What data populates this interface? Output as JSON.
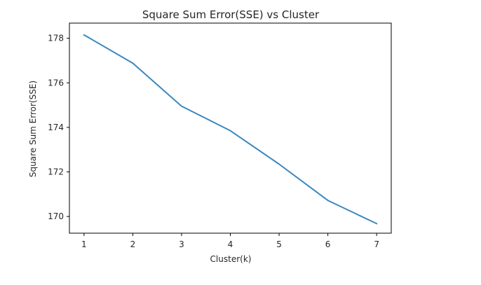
{
  "chart_data": {
    "type": "line",
    "title": "Square Sum Error(SSE) vs Cluster",
    "xlabel": "Cluster(k)",
    "ylabel": "Square Sum Error(SSE)",
    "x": [
      1,
      2,
      3,
      4,
      5,
      6,
      7
    ],
    "series": [
      {
        "values": [
          178.15,
          176.88,
          174.95,
          173.85,
          172.35,
          170.72,
          169.68
        ],
        "color": "#3a87c0"
      }
    ],
    "xticks": [
      1,
      2,
      3,
      4,
      5,
      6,
      7
    ],
    "yticks": [
      170,
      172,
      174,
      176,
      178
    ],
    "xlim": [
      0.7,
      7.3
    ],
    "ylim": [
      169.25,
      178.68
    ],
    "grid": false,
    "legend": "none"
  }
}
